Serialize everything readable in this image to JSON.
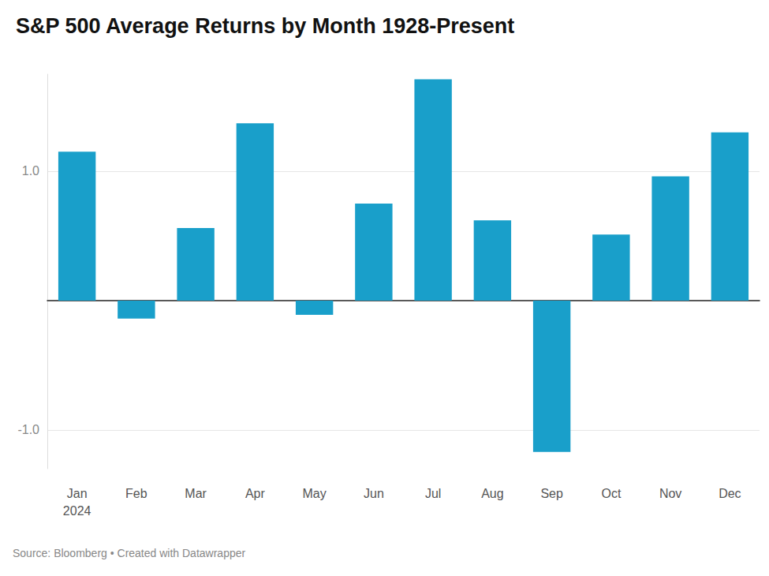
{
  "chart_data": {
    "type": "bar",
    "title": "S&P 500 Average Returns by Month 1928-Present",
    "categories": [
      "Jan\n2024",
      "Feb",
      "Mar",
      "Apr",
      "May",
      "Jun",
      "Jul",
      "Aug",
      "Sep",
      "Oct",
      "Nov",
      "Dec"
    ],
    "values": [
      1.15,
      -0.14,
      0.56,
      1.37,
      -0.11,
      0.75,
      1.71,
      0.62,
      -1.17,
      0.51,
      0.96,
      1.3
    ],
    "color": "#199fca",
    "ylim": [
      -1.3,
      1.75
    ],
    "yticks": [
      {
        "value": -1,
        "label": "-1.0"
      },
      {
        "value": 1,
        "label": "1.0"
      }
    ],
    "grid": true,
    "source": "Source: Bloomberg • Created with Datawrapper"
  }
}
